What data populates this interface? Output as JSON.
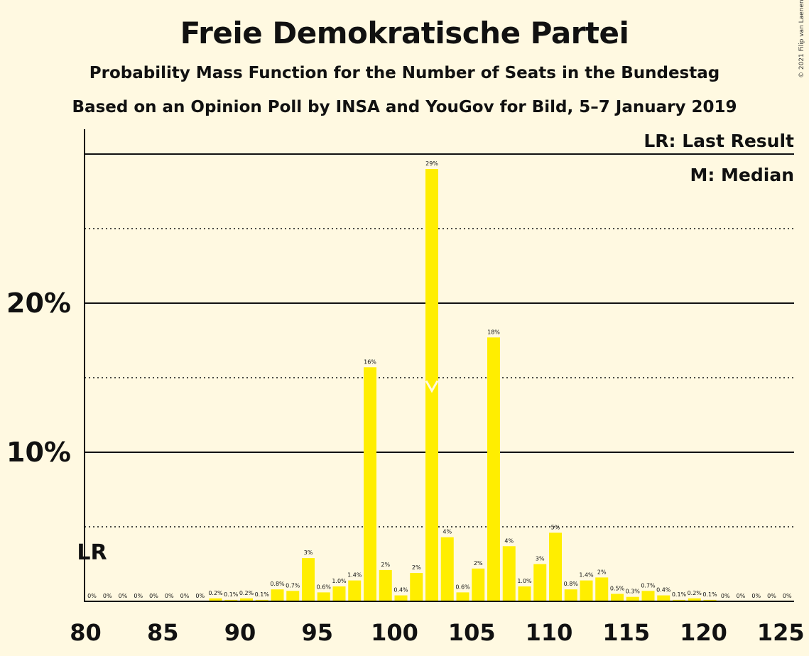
{
  "title": "Freie Demokratische Partei",
  "subtitle": "Probability Mass Function for the Number of Seats in the Bundestag",
  "subtitle2": "Based on an Opinion Poll by INSA and YouGov for Bild, 5–7 January 2019",
  "copyright": "© 2021 Filip van Laenen",
  "legend": {
    "lr": "LR: Last Result",
    "median": "M: Median"
  },
  "colors": {
    "bar": "#ffee00",
    "background": "#fff9e1",
    "axis": "#111111"
  },
  "chart_data": {
    "type": "bar",
    "x": [
      80,
      81,
      82,
      83,
      84,
      85,
      86,
      87,
      88,
      89,
      90,
      91,
      92,
      93,
      94,
      95,
      96,
      97,
      98,
      99,
      100,
      101,
      102,
      103,
      104,
      105,
      106,
      107,
      108,
      109,
      110,
      111,
      112,
      113,
      114,
      115,
      116,
      117,
      118,
      119,
      120,
      121,
      122,
      123,
      124,
      125
    ],
    "values": [
      0,
      0,
      0,
      0,
      0,
      0,
      0,
      0,
      0.2,
      0.1,
      0.2,
      0.1,
      0.8,
      0.7,
      2.9,
      0.6,
      1.0,
      1.4,
      15.7,
      2.1,
      0.4,
      1.9,
      29.0,
      4.3,
      0.6,
      2.2,
      17.7,
      3.7,
      1.0,
      2.5,
      4.6,
      0.8,
      1.4,
      1.6,
      0.5,
      0.3,
      0.7,
      0.4,
      0.1,
      0.2,
      0.1,
      0,
      0,
      0,
      0,
      0
    ],
    "data_labels": [
      "0%",
      "0%",
      "0%",
      "0%",
      "0%",
      "0%",
      "0%",
      "0%",
      "0.2%",
      "0.1%",
      "0.2%",
      "0.1%",
      "0.8%",
      "0.7%",
      "3%",
      "0.6%",
      "1.0%",
      "1.4%",
      "16%",
      "2%",
      "0.4%",
      "2%",
      "29%",
      "4%",
      "0.6%",
      "2%",
      "18%",
      "4%",
      "1.0%",
      "3%",
      "5%",
      "0.8%",
      "1.4%",
      "2%",
      "0.5%",
      "0.3%",
      "0.7%",
      "0.4%",
      "0.1%",
      "0.2%",
      "0.1%",
      "0%",
      "0%",
      "0%",
      "0%",
      "0%"
    ],
    "x_ticks": [
      80,
      85,
      90,
      95,
      100,
      105,
      110,
      115,
      120,
      125
    ],
    "x_tick_labels": [
      "80",
      "85",
      "90",
      "95",
      "100",
      "105",
      "110",
      "115",
      "120",
      "125"
    ],
    "y_ticks": [
      10,
      20
    ],
    "y_tick_labels": [
      "10%",
      "20%"
    ],
    "ylim": [
      0,
      30
    ],
    "last_result": 80,
    "last_result_label": "LR",
    "median": 102,
    "grid": true
  }
}
